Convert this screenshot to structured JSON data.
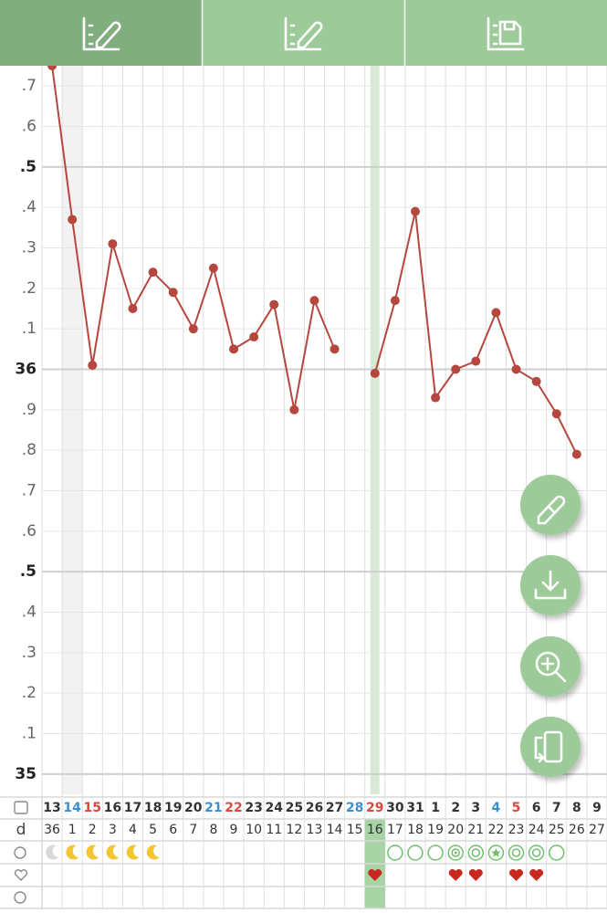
{
  "chart_data": {
    "type": "line",
    "categories": [
      "13",
      "14",
      "15",
      "16",
      "17",
      "18",
      "19",
      "20",
      "21",
      "22",
      "23",
      "24",
      "25",
      "26",
      "27",
      "28",
      "29",
      "30",
      "31",
      "1",
      "2",
      "3",
      "4",
      "5",
      "6",
      "7",
      "8",
      "9"
    ],
    "date_colors": [
      "#333333",
      "#3b8fd0",
      "#d9493c",
      "#333333",
      "#333333",
      "#333333",
      "#333333",
      "#333333",
      "#3b8fd0",
      "#d9493c",
      "#333333",
      "#333333",
      "#333333",
      "#333333",
      "#333333",
      "#3b8fd0",
      "#d9493c",
      "#333333",
      "#333333",
      "#333333",
      "#333333",
      "#333333",
      "#3b8fd0",
      "#d9493c",
      "#333333",
      "#333333",
      "#333333",
      "#333333"
    ],
    "cycle_day_label": "d",
    "cycle_days": [
      "36",
      "1",
      "2",
      "3",
      "4",
      "5",
      "6",
      "7",
      "8",
      "9",
      "10",
      "11",
      "12",
      "13",
      "14",
      "15",
      "16",
      "17",
      "18",
      "19",
      "20",
      "21",
      "22",
      "23",
      "24",
      "25",
      "26",
      "27"
    ],
    "values": [
      36.75,
      36.37,
      36.01,
      36.31,
      36.15,
      36.24,
      36.19,
      36.1,
      36.25,
      36.05,
      36.08,
      36.16,
      35.9,
      36.17,
      36.05,
      null,
      35.99,
      36.17,
      36.39,
      35.93,
      36.0,
      36.02,
      36.14,
      36.0,
      35.97,
      35.89,
      35.79,
      null
    ],
    "color": "#b5473e",
    "ylim": [
      34.95,
      36.75
    ],
    "yticks": [
      35,
      {
        "value": 35.1,
        "label": ".1"
      },
      {
        "value": 35.2,
        "label": ".2"
      },
      {
        "value": 35.3,
        "label": ".3"
      },
      {
        "value": 35.4,
        "label": ".4"
      },
      {
        "value": 35.5,
        "label": ".5"
      },
      {
        "value": 35.6,
        "label": ".6"
      },
      {
        "value": 35.7,
        "label": ".7"
      },
      {
        "value": 35.8,
        "label": ".8"
      },
      {
        "value": 35.9,
        "label": ".9"
      },
      36,
      {
        "value": 36.1,
        "label": ".1"
      },
      {
        "value": 36.2,
        "label": ".2"
      },
      {
        "value": 36.3,
        "label": ".3"
      },
      {
        "value": 36.4,
        "label": ".4"
      },
      {
        "value": 36.5,
        "label": ".5"
      },
      {
        "value": 36.6,
        "label": ".6"
      },
      {
        "value": 36.7,
        "label": ".7"
      }
    ],
    "grid": true
  }
}
